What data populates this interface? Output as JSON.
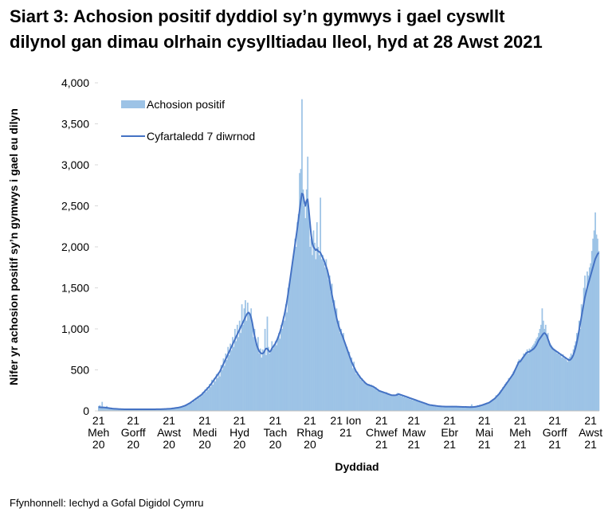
{
  "chart_data": {
    "type": "bar",
    "title": [
      "Siart 3: Achosion positif dyddiol sy’n gymwys i gael cyswllt",
      "dilynol gan dimau olrhain cysylltiadau lleol, hyd at 28 Awst 2021"
    ],
    "y_label": "Nifer yr achosion positif sy’n gymwys i gael eu dilyn",
    "x_label": "Dyddiad",
    "source": "Ffynhonnell: Iechyd a Gofal Digidol Cymru",
    "ylim": [
      0,
      4000
    ],
    "yticks": [
      0,
      500,
      {
        "value": 1000,
        "label": "1,000"
      },
      {
        "value": 1500,
        "label": "1,500"
      },
      {
        "value": 2000,
        "label": "2,000"
      },
      {
        "value": 2500,
        "label": "2,500"
      },
      {
        "value": 3000,
        "label": "3,000"
      },
      {
        "value": 3500,
        "label": "3,500"
      },
      {
        "value": 4000,
        "label": "4,000"
      }
    ],
    "legend_position": "upper left",
    "categories": [
      "21\nMeh\n20",
      null,
      null,
      null,
      null,
      null,
      null,
      null,
      null,
      null,
      null,
      null,
      null,
      null,
      null,
      null,
      null,
      null,
      null,
      null,
      null,
      null,
      null,
      null,
      null,
      null,
      null,
      null,
      null,
      null,
      "21\nGorff\n20",
      null,
      null,
      null,
      null,
      null,
      null,
      null,
      null,
      null,
      null,
      null,
      null,
      null,
      null,
      null,
      null,
      null,
      null,
      null,
      null,
      null,
      null,
      null,
      null,
      null,
      null,
      null,
      null,
      null,
      null,
      "21\nAwst\n20",
      null,
      null,
      null,
      null,
      null,
      null,
      null,
      null,
      null,
      null,
      null,
      null,
      null,
      null,
      null,
      null,
      null,
      null,
      null,
      null,
      null,
      null,
      null,
      null,
      null,
      null,
      null,
      null,
      null,
      null,
      "21\nMedi\n20",
      null,
      null,
      null,
      null,
      null,
      null,
      null,
      null,
      null,
      null,
      null,
      null,
      null,
      null,
      null,
      null,
      null,
      null,
      null,
      null,
      null,
      null,
      null,
      null,
      null,
      null,
      null,
      null,
      null,
      "21\nHyd\n20",
      null,
      null,
      null,
      null,
      null,
      null,
      null,
      null,
      null,
      null,
      null,
      null,
      null,
      null,
      null,
      null,
      null,
      null,
      null,
      null,
      null,
      null,
      null,
      null,
      null,
      null,
      null,
      null,
      null,
      null,
      "21\nTach\n20",
      null,
      null,
      null,
      null,
      null,
      null,
      null,
      null,
      null,
      null,
      null,
      null,
      null,
      null,
      null,
      null,
      null,
      null,
      null,
      null,
      null,
      null,
      null,
      null,
      null,
      null,
      null,
      null,
      null,
      "21\nRhag\n20",
      null,
      null,
      null,
      null,
      null,
      null,
      null,
      null,
      null,
      null,
      null,
      null,
      null,
      null,
      null,
      null,
      null,
      null,
      null,
      null,
      null,
      null,
      null,
      null,
      null,
      null,
      null,
      null,
      null,
      null,
      "21 Ion\n21",
      null,
      null,
      null,
      null,
      null,
      null,
      null,
      null,
      null,
      null,
      null,
      null,
      null,
      null,
      null,
      null,
      null,
      null,
      null,
      null,
      null,
      null,
      null,
      null,
      null,
      null,
      null,
      null,
      null,
      null,
      "21\nChwef\n21",
      null,
      null,
      null,
      null,
      null,
      null,
      null,
      null,
      null,
      null,
      null,
      null,
      null,
      null,
      null,
      null,
      null,
      null,
      null,
      null,
      null,
      null,
      null,
      null,
      null,
      null,
      null,
      "21\nMaw\n21",
      null,
      null,
      null,
      null,
      null,
      null,
      null,
      null,
      null,
      null,
      null,
      null,
      null,
      null,
      null,
      null,
      null,
      null,
      null,
      null,
      null,
      null,
      null,
      null,
      null,
      null,
      null,
      null,
      null,
      null,
      "21\nEbr\n21",
      null,
      null,
      null,
      null,
      null,
      null,
      null,
      null,
      null,
      null,
      null,
      null,
      null,
      null,
      null,
      null,
      null,
      null,
      null,
      null,
      null,
      null,
      null,
      null,
      null,
      null,
      null,
      null,
      null,
      "21\nMai\n21",
      null,
      null,
      null,
      null,
      null,
      null,
      null,
      null,
      null,
      null,
      null,
      null,
      null,
      null,
      null,
      null,
      null,
      null,
      null,
      null,
      null,
      null,
      null,
      null,
      null,
      null,
      null,
      null,
      null,
      null,
      "21\nMeh\n21",
      null,
      null,
      null,
      null,
      null,
      null,
      null,
      null,
      null,
      null,
      null,
      null,
      null,
      null,
      null,
      null,
      null,
      null,
      null,
      null,
      null,
      null,
      null,
      null,
      null,
      null,
      null,
      null,
      null,
      "21\nGorff\n21",
      null,
      null,
      null,
      null,
      null,
      null,
      null,
      null,
      null,
      null,
      null,
      null,
      null,
      null,
      null,
      null,
      null,
      null,
      null,
      null,
      null,
      null,
      null,
      null,
      null,
      null,
      null,
      null,
      null,
      null,
      "21\nAwst\n21",
      null,
      null,
      null,
      null,
      null,
      null,
      null
    ],
    "series": [
      {
        "name": "Achosion positif",
        "type": "bar",
        "color": "#9dc3e6",
        "values": [
          60,
          70,
          50,
          110,
          40,
          35,
          45,
          60,
          40,
          30,
          35,
          25,
          30,
          20,
          25,
          30,
          25,
          20,
          25,
          20,
          22,
          18,
          25,
          20,
          18,
          22,
          20,
          18,
          20,
          17,
          20,
          18,
          22,
          17,
          19,
          21,
          18,
          20,
          19,
          17,
          22,
          20,
          18,
          21,
          19,
          22,
          20,
          18,
          23,
          19,
          21,
          24,
          20,
          19,
          23,
          22,
          21,
          25,
          22,
          27,
          26,
          24,
          30,
          27,
          32,
          30,
          38,
          34,
          40,
          38,
          48,
          44,
          55,
          52,
          65,
          58,
          78,
          75,
          95,
          88,
          110,
          100,
          135,
          120,
          160,
          140,
          180,
          160,
          200,
          180,
          230,
          210,
          260,
          230,
          290,
          260,
          330,
          290,
          380,
          320,
          400,
          360,
          450,
          400,
          470,
          420,
          560,
          500,
          640,
          550,
          700,
          620,
          780,
          680,
          820,
          740,
          900,
          780,
          1000,
          850,
          1050,
          900,
          1100,
          950,
          1300,
          1050,
          1250,
          1350,
          1100,
          1320,
          1200,
          1150,
          1250,
          1050,
          900,
          1000,
          880,
          820,
          900,
          700,
          760,
          650,
          750,
          700,
          1000,
          680,
          1150,
          780,
          700,
          720,
          850,
          760,
          800,
          850,
          800,
          900,
          950,
          880,
          1050,
          1000,
          1150,
          1100,
          1300,
          1200,
          1500,
          1550,
          1600,
          1700,
          1850,
          1900,
          2100,
          2000,
          2300,
          2400,
          2900,
          2950,
          3800,
          2700,
          2500,
          2350,
          2700,
          3100,
          2400,
          2000,
          2100,
          1900,
          2200,
          2050,
          1850,
          2300,
          2000,
          1900,
          2600,
          1850,
          1900,
          1800,
          1750,
          1850,
          1700,
          1600,
          1650,
          1450,
          1550,
          1300,
          1350,
          1200,
          1250,
          1050,
          1100,
          950,
          1000,
          900,
          950,
          820,
          800,
          780,
          700,
          720,
          620,
          650,
          520,
          600,
          500,
          450,
          480,
          420,
          430,
          380,
          400,
          350,
          360,
          330,
          320,
          310,
          330,
          300,
          320,
          290,
          300,
          270,
          290,
          250,
          260,
          240,
          250,
          230,
          240,
          220,
          210,
          230,
          200,
          210,
          190,
          200,
          180,
          200,
          190,
          180,
          210,
          220,
          190,
          200,
          180,
          190,
          170,
          180,
          160,
          170,
          150,
          160,
          140,
          150,
          130,
          140,
          130,
          125,
          120,
          110,
          115,
          100,
          100,
          90,
          95,
          80,
          85,
          70,
          75,
          65,
          70,
          60,
          65,
          55,
          60,
          55,
          60,
          50,
          55,
          50,
          55,
          50,
          60,
          45,
          55,
          50,
          55,
          50,
          60,
          45,
          55,
          50,
          52,
          48,
          55,
          45,
          50,
          48,
          52,
          45,
          50,
          40,
          55,
          45,
          60,
          80,
          50,
          55,
          60,
          55,
          70,
          65,
          75,
          70,
          80,
          85,
          90,
          80,
          100,
          90,
          105,
          115,
          130,
          140,
          150,
          160,
          190,
          170,
          210,
          230,
          250,
          240,
          290,
          280,
          330,
          350,
          340,
          400,
          380,
          420,
          450,
          480,
          500,
          520,
          560,
          600,
          630,
          620,
          640,
          660,
          700,
          680,
          720,
          750,
          700,
          760,
          750,
          780,
          800,
          820,
          850,
          880,
          900,
          950,
          1000,
          1050,
          1250,
          1100,
          1000,
          1050,
          900,
          950,
          850,
          820,
          800,
          780,
          760,
          750,
          730,
          700,
          720,
          680,
          700,
          650,
          690,
          640,
          660,
          620,
          600,
          640,
          660,
          700,
          680,
          750,
          800,
          850,
          950,
          900,
          1100,
          1000,
          1300,
          1200,
          1500,
          1650,
          1450,
          1700,
          1650,
          1750,
          1800,
          1950,
          2100,
          2200,
          2420,
          2150,
          2100,
          1950
        ]
      },
      {
        "name": "Cyfartaledd 7 diwrnod",
        "type": "line",
        "color": "#4472c4",
        "values": [
          45,
          45,
          44,
          43,
          42,
          41,
          40,
          38,
          36,
          34,
          32,
          30,
          28,
          27,
          26,
          25,
          24,
          23,
          22,
          22,
          21,
          21,
          20,
          20,
          20,
          20,
          19,
          19,
          19,
          19,
          19,
          19,
          19,
          19,
          19,
          19,
          19,
          19,
          19,
          19,
          19,
          20,
          20,
          20,
          20,
          20,
          20,
          20,
          20,
          20,
          21,
          21,
          21,
          21,
          21,
          22,
          22,
          23,
          23,
          24,
          25,
          26,
          27,
          28,
          30,
          32,
          34,
          36,
          38,
          40,
          43,
          46,
          50,
          55,
          60,
          65,
          72,
          80,
          88,
          95,
          105,
          115,
          125,
          135,
          145,
          155,
          165,
          175,
          185,
          195,
          210,
          225,
          240,
          255,
          270,
          285,
          300,
          320,
          340,
          360,
          380,
          400,
          420,
          440,
          460,
          480,
          510,
          540,
          570,
          600,
          630,
          660,
          690,
          720,
          750,
          780,
          810,
          840,
          870,
          900,
          930,
          960,
          990,
          1020,
          1050,
          1080,
          1110,
          1140,
          1170,
          1190,
          1200,
          1180,
          1140,
          1080,
          1000,
          920,
          860,
          800,
          760,
          730,
          710,
          700,
          700,
          710,
          740,
          760,
          760,
          740,
          720,
          730,
          760,
          780,
          800,
          820,
          850,
          880,
          920,
          960,
          1010,
          1060,
          1120,
          1180,
          1250,
          1330,
          1420,
          1520,
          1620,
          1720,
          1820,
          1920,
          2020,
          2120,
          2220,
          2330,
          2440,
          2550,
          2650,
          2640,
          2560,
          2500,
          2560,
          2580,
          2450,
          2300,
          2150,
          2050,
          2000,
          1980,
          1960,
          1970,
          1950,
          1940,
          1930,
          1900,
          1870,
          1840,
          1800,
          1760,
          1720,
          1660,
          1590,
          1500,
          1420,
          1350,
          1280,
          1210,
          1140,
          1080,
          1030,
          990,
          950,
          920,
          880,
          840,
          800,
          760,
          720,
          680,
          640,
          600,
          570,
          540,
          510,
          480,
          460,
          440,
          420,
          400,
          385,
          370,
          355,
          340,
          330,
          320,
          315,
          310,
          305,
          300,
          295,
          285,
          275,
          265,
          255,
          245,
          240,
          235,
          230,
          225,
          220,
          215,
          210,
          205,
          200,
          195,
          190,
          190,
          190,
          190,
          195,
          200,
          205,
          200,
          195,
          190,
          185,
          180,
          175,
          170,
          165,
          160,
          155,
          150,
          145,
          140,
          135,
          130,
          125,
          120,
          115,
          110,
          105,
          100,
          95,
          90,
          85,
          80,
          75,
          72,
          70,
          68,
          66,
          64,
          62,
          60,
          58,
          57,
          56,
          55,
          54,
          53,
          52,
          52,
          52,
          52,
          52,
          52,
          52,
          52,
          52,
          52,
          52,
          51,
          51,
          50,
          50,
          49,
          49,
          48,
          48,
          47,
          47,
          46,
          46,
          46,
          47,
          48,
          50,
          52,
          55,
          58,
          62,
          66,
          70,
          75,
          80,
          85,
          90,
          95,
          100,
          110,
          120,
          130,
          140,
          150,
          165,
          180,
          195,
          210,
          230,
          250,
          270,
          290,
          310,
          330,
          350,
          370,
          390,
          410,
          430,
          450,
          480,
          510,
          540,
          570,
          600,
          600,
          620,
          640,
          660,
          680,
          700,
          710,
          720,
          720,
          730,
          740,
          750,
          760,
          780,
          800,
          830,
          860,
          880,
          900,
          920,
          940,
          950,
          940,
          920,
          880,
          840,
          800,
          780,
          760,
          750,
          740,
          730,
          720,
          710,
          700,
          690,
          680,
          670,
          660,
          650,
          640,
          630,
          620,
          620,
          630,
          650,
          680,
          720,
          770,
          830,
          900,
          980,
          1060,
          1140,
          1220,
          1300,
          1380,
          1440,
          1500,
          1550,
          1600,
          1650,
          1700,
          1750,
          1800,
          1850,
          1880,
          1910,
          1930
        ]
      }
    ]
  }
}
